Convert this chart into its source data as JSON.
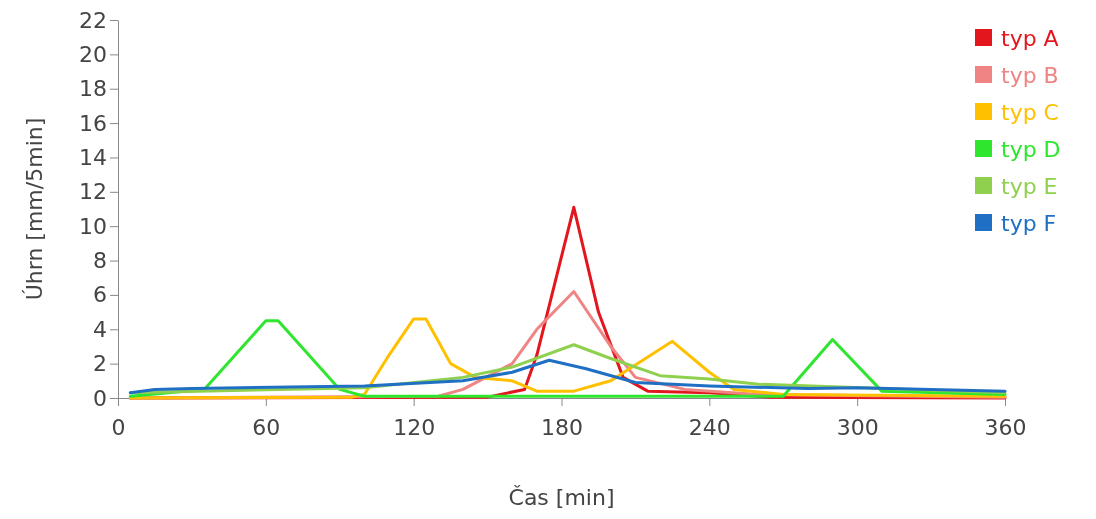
{
  "chart_data": {
    "type": "line",
    "xlabel": "Čas [min]",
    "ylabel": "Úhrn [mm/5min]",
    "xlim": [
      0,
      360
    ],
    "xticks": [
      0,
      60,
      120,
      180,
      240,
      300,
      360
    ],
    "ylim": [
      0,
      22
    ],
    "yticks": [
      0,
      2,
      4,
      6,
      8,
      10,
      12,
      14,
      16,
      18,
      20,
      22
    ],
    "grid": false,
    "legend": "top right",
    "marker": "none",
    "line_style": "solid",
    "series": [
      {
        "name": "typ A",
        "color": "#e3161e",
        "x": [
          5,
          150,
          165,
          170,
          185,
          195,
          205,
          215,
          240,
          265,
          360
        ],
        "values": [
          0,
          0.05,
          0.5,
          2.5,
          11.1,
          5,
          1.2,
          0.4,
          0.3,
          0.05,
          0
        ]
      },
      {
        "name": "typ B",
        "color": "#f08484",
        "x": [
          5,
          130,
          140,
          160,
          170,
          185,
          200,
          210,
          230,
          260,
          360
        ],
        "values": [
          0,
          0.1,
          0.5,
          2,
          4,
          6.2,
          3,
          1.2,
          0.5,
          0.2,
          0.05
        ]
      },
      {
        "name": "typ C",
        "color": "#ffc000",
        "x": [
          5,
          95,
          100,
          110,
          120,
          125,
          135,
          145,
          160,
          170,
          185,
          200,
          225,
          240,
          250,
          270,
          360
        ],
        "values": [
          0,
          0.05,
          0.2,
          2.5,
          4.6,
          4.6,
          2,
          1.2,
          1,
          0.4,
          0.4,
          1,
          3.3,
          1.5,
          0.5,
          0.2,
          0.1
        ]
      },
      {
        "name": "typ D",
        "color": "#2ee62e",
        "x": [
          5,
          35,
          60,
          65,
          90,
          100,
          270,
          290,
          310,
          360
        ],
        "values": [
          0.1,
          0.5,
          4.5,
          4.5,
          0.5,
          0.1,
          0.1,
          3.4,
          0.4,
          0.2
        ]
      },
      {
        "name": "typ E",
        "color": "#8fd14f",
        "x": [
          5,
          100,
          140,
          160,
          185,
          200,
          220,
          240,
          260,
          360
        ],
        "values": [
          0.3,
          0.6,
          1.2,
          1.8,
          3.1,
          2.3,
          1.3,
          1.1,
          0.8,
          0.3
        ]
      },
      {
        "name": "typ F",
        "color": "#1f6fc4",
        "x": [
          5,
          15,
          30,
          100,
          140,
          160,
          175,
          190,
          210,
          240,
          280,
          300,
          360
        ],
        "values": [
          0.3,
          0.5,
          0.55,
          0.7,
          1,
          1.5,
          2.2,
          1.7,
          0.9,
          0.7,
          0.55,
          0.6,
          0.4
        ]
      }
    ]
  }
}
